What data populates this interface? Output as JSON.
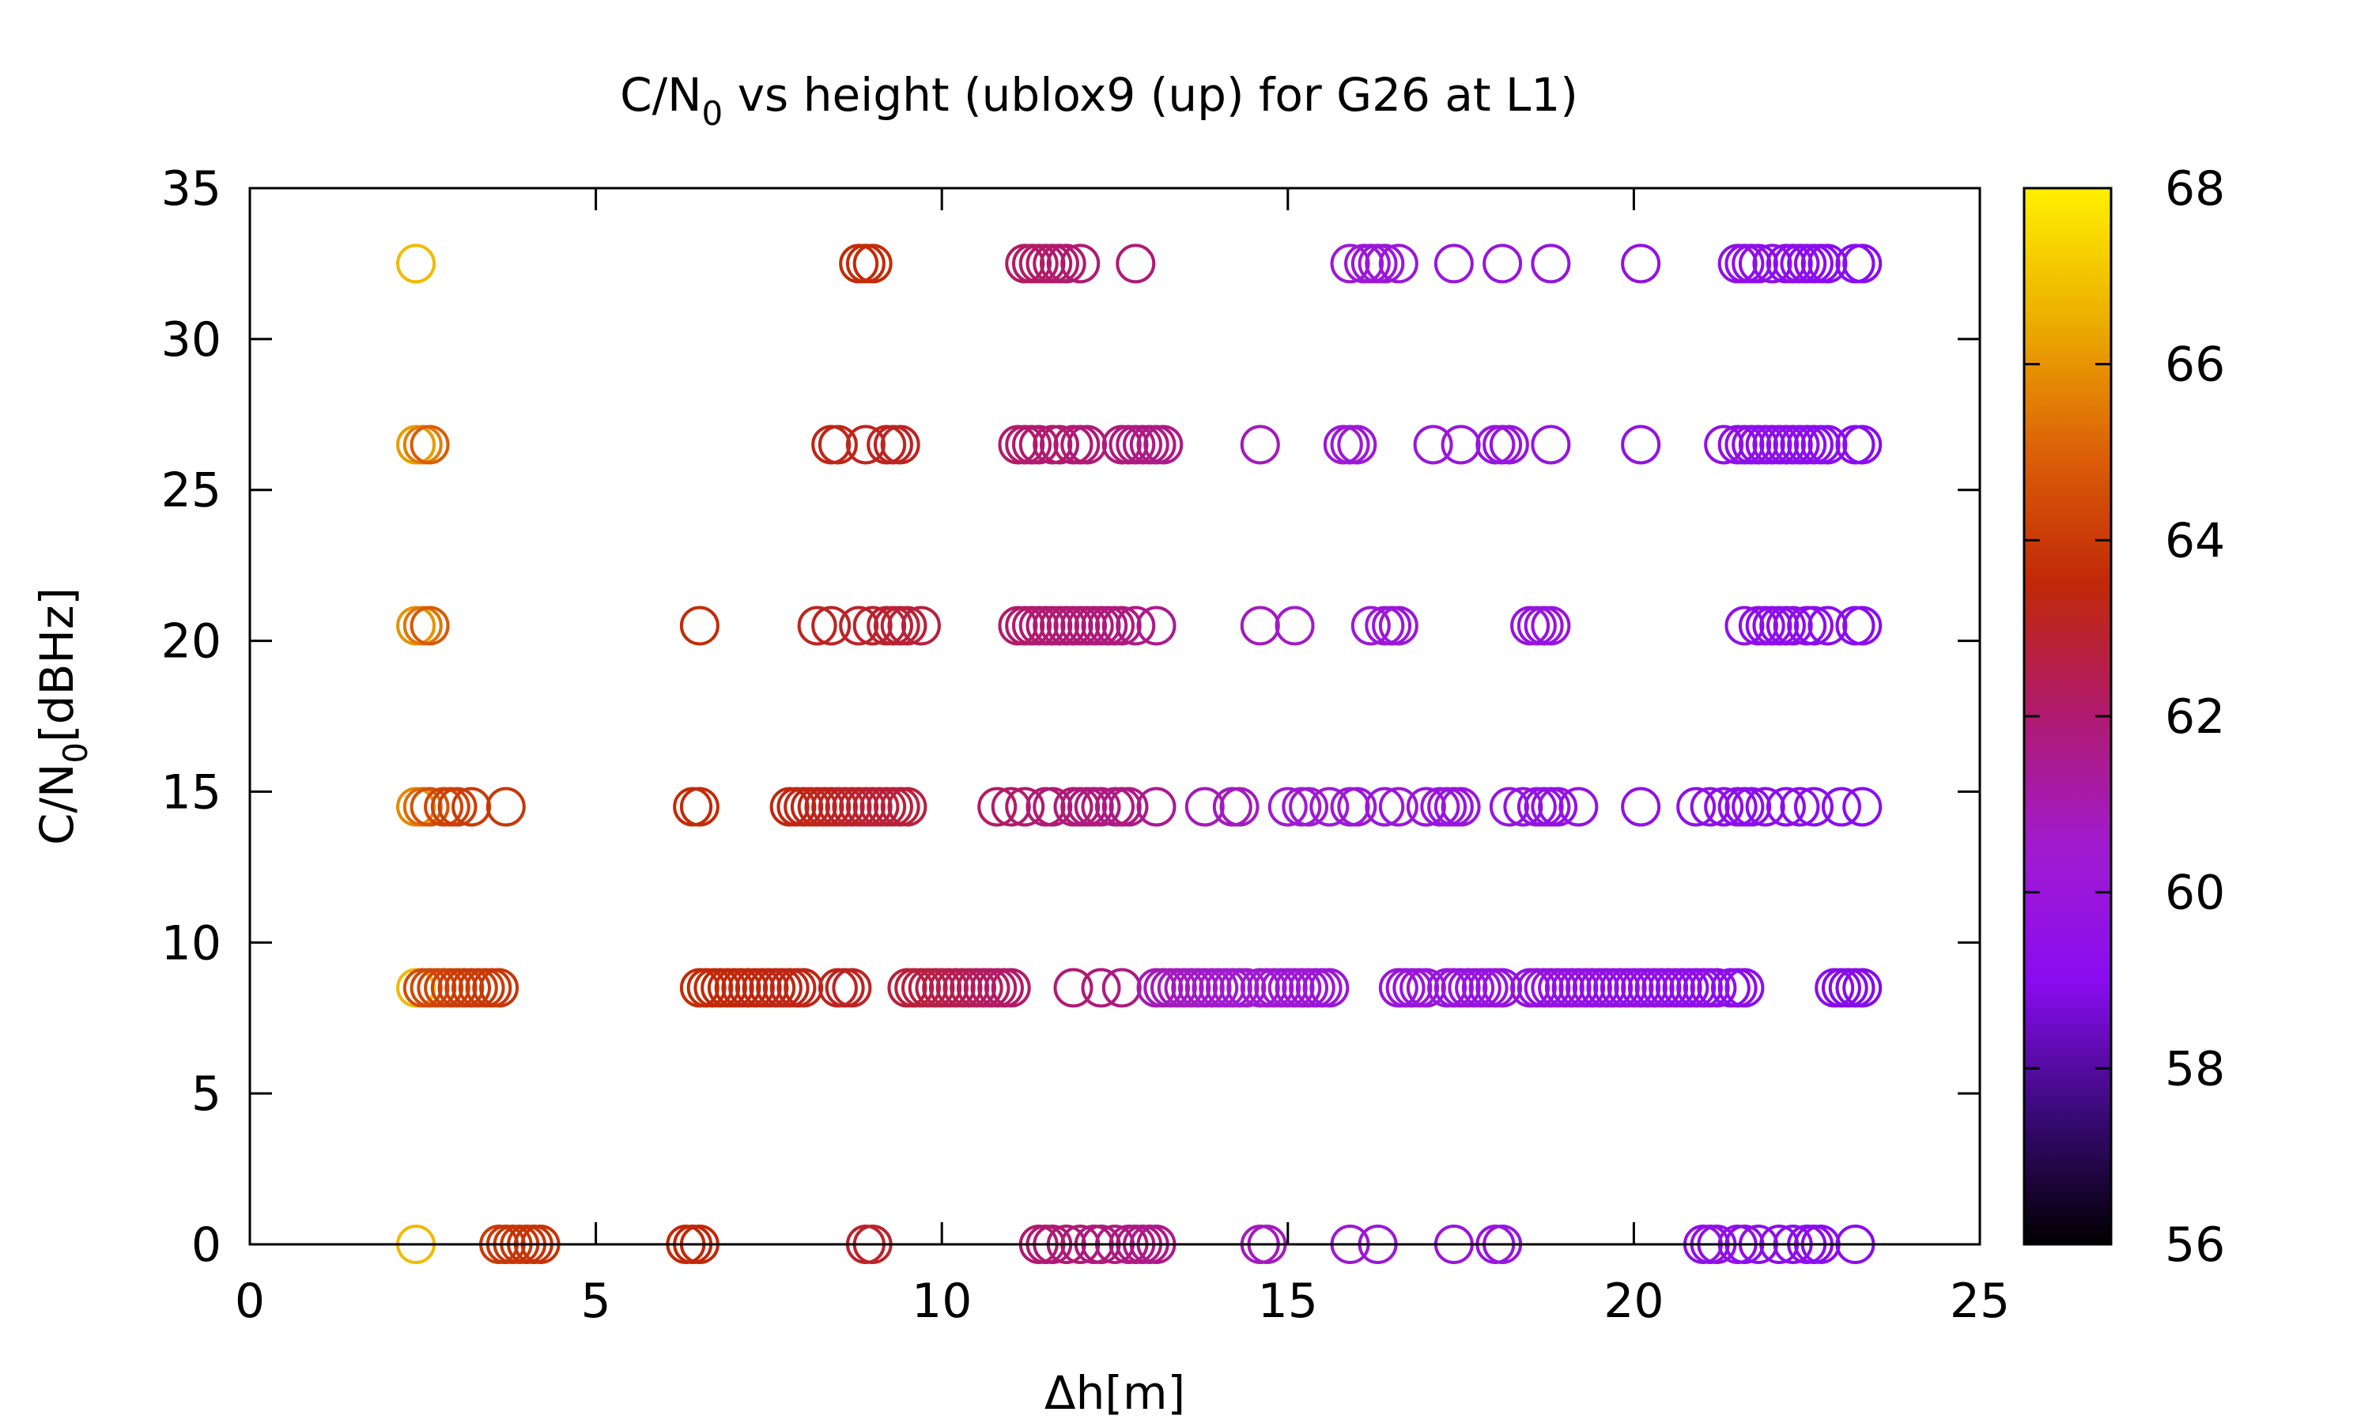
{
  "chart_data": {
    "type": "scatter",
    "title": "C/N0 vs height (ublox9 (up) for G26 at L1)",
    "title_parts": {
      "pre": "C/N",
      "sub": "0",
      "post": " vs height (ublox9 (up) for G26 at L1)"
    },
    "xlabel": "Δh[m]",
    "ylabel": "C/N0[dBHz]",
    "ylabel_parts": {
      "pre": "C/N",
      "sub": "0",
      "post": "[dBHz]"
    },
    "xlim": [
      0,
      25
    ],
    "ylim": [
      0,
      35
    ],
    "xticks": [
      "0",
      "5",
      "10",
      "15",
      "20",
      "25"
    ],
    "yticks": [
      "0",
      "5",
      "10",
      "15",
      "20",
      "25",
      "30",
      "35"
    ],
    "colorbar": {
      "range": [
        56,
        68
      ],
      "ticks": [
        "56",
        "58",
        "60",
        "62",
        "64",
        "66",
        "68"
      ],
      "palette": [
        "#000000",
        "#3a0a78",
        "#8a0cf0",
        "#a01bd0",
        "#b01a70",
        "#c02808",
        "#dc6008",
        "#ecae00",
        "#fff000"
      ]
    },
    "grid": false,
    "marker": "open-circle",
    "series": [
      {
        "y": 32.5,
        "x": [
          2.4,
          8.8,
          8.9,
          9.0,
          11.2,
          11.3,
          11.4,
          11.5,
          11.6,
          11.7,
          11.8,
          12.0,
          12.8,
          15.9,
          16.1,
          16.2,
          16.3,
          16.4,
          16.6,
          17.4,
          18.1,
          18.8,
          20.1,
          21.5,
          21.6,
          21.7,
          21.8,
          22.0,
          22.2,
          22.3,
          22.4,
          22.5,
          22.6,
          22.7,
          22.8,
          23.2,
          23.3
        ],
        "cn0": [
          66.8,
          63.6,
          63.6,
          63.6,
          62.2,
          62.2,
          62.2,
          62.1,
          62.1,
          62.1,
          62.0,
          62.0,
          61.9,
          60.3,
          60.2,
          60.2,
          60.2,
          60.1,
          60.1,
          60.0,
          59.9,
          59.8,
          59.6,
          59.4,
          59.4,
          59.4,
          59.3,
          59.3,
          59.2,
          59.2,
          59.2,
          59.2,
          59.1,
          59.1,
          59.1,
          59.0,
          59.0
        ]
      },
      {
        "y": 26.5,
        "x": [
          2.4,
          2.5,
          2.6,
          8.4,
          8.5,
          8.9,
          9.2,
          9.3,
          9.4,
          11.1,
          11.2,
          11.3,
          11.4,
          11.6,
          11.7,
          11.9,
          12.0,
          12.1,
          12.6,
          12.7,
          12.8,
          12.9,
          13.0,
          13.1,
          13.2,
          14.6,
          15.8,
          15.9,
          16.0,
          17.1,
          17.5,
          18.0,
          18.1,
          18.2,
          18.8,
          20.1,
          21.3,
          21.5,
          21.6,
          21.7,
          21.8,
          21.9,
          22.0,
          22.1,
          22.2,
          22.3,
          22.4,
          22.5,
          22.6,
          22.7,
          22.8,
          23.2,
          23.3
        ],
        "cn0": [
          66.2,
          65.6,
          64.9,
          63.3,
          63.3,
          63.2,
          63.2,
          63.1,
          63.1,
          62.1,
          62.1,
          62.1,
          62.0,
          62.0,
          62.0,
          62.0,
          61.9,
          61.9,
          61.8,
          61.8,
          61.8,
          61.7,
          61.7,
          61.7,
          61.6,
          60.8,
          60.3,
          60.3,
          60.2,
          60.1,
          60.0,
          59.9,
          59.9,
          59.9,
          59.8,
          59.6,
          59.4,
          59.4,
          59.4,
          59.3,
          59.3,
          59.3,
          59.3,
          59.2,
          59.2,
          59.2,
          59.2,
          59.2,
          59.1,
          59.1,
          59.1,
          59.0,
          59.0
        ]
      },
      {
        "y": 20.5,
        "x": [
          2.4,
          2.5,
          2.6,
          6.5,
          8.2,
          8.4,
          8.8,
          9.0,
          9.2,
          9.3,
          9.4,
          9.5,
          9.7,
          11.1,
          11.2,
          11.3,
          11.4,
          11.5,
          11.6,
          11.7,
          11.8,
          11.9,
          12.0,
          12.1,
          12.2,
          12.3,
          12.4,
          12.5,
          12.6,
          12.8,
          13.1,
          14.6,
          15.1,
          16.2,
          16.4,
          16.5,
          16.6,
          18.5,
          18.6,
          18.7,
          18.8,
          21.6,
          21.8,
          21.9,
          22.0,
          22.1,
          22.2,
          22.3,
          22.5,
          22.6,
          22.8,
          23.2,
          23.3
        ],
        "cn0": [
          66.0,
          65.4,
          64.8,
          63.6,
          63.2,
          63.1,
          63.0,
          63.0,
          62.9,
          62.9,
          62.9,
          62.8,
          62.7,
          62.1,
          62.1,
          62.1,
          62.0,
          62.0,
          62.0,
          62.0,
          62.0,
          61.9,
          61.9,
          61.9,
          61.9,
          61.9,
          61.8,
          61.8,
          61.8,
          61.7,
          61.5,
          60.8,
          60.6,
          60.2,
          60.2,
          60.1,
          60.1,
          59.8,
          59.8,
          59.8,
          59.8,
          59.4,
          59.3,
          59.3,
          59.3,
          59.2,
          59.2,
          59.2,
          59.2,
          59.1,
          59.1,
          59.0,
          59.0
        ]
      },
      {
        "y": 14.5,
        "x": [
          2.4,
          2.5,
          2.6,
          2.8,
          2.9,
          3.0,
          3.2,
          3.7,
          6.4,
          6.5,
          7.8,
          7.9,
          8.0,
          8.1,
          8.2,
          8.3,
          8.4,
          8.5,
          8.6,
          8.7,
          8.8,
          8.9,
          9.0,
          9.1,
          9.2,
          9.3,
          9.4,
          9.5,
          10.8,
          11.0,
          11.2,
          11.5,
          11.6,
          11.9,
          12.0,
          12.1,
          12.2,
          12.3,
          12.5,
          12.6,
          12.7,
          13.1,
          13.8,
          14.2,
          14.3,
          15.0,
          15.2,
          15.3,
          15.6,
          15.9,
          16.0,
          16.4,
          16.6,
          17.0,
          17.2,
          17.3,
          17.4,
          17.5,
          18.2,
          18.4,
          18.6,
          18.7,
          18.8,
          18.9,
          19.2,
          20.1,
          20.9,
          21.1,
          21.3,
          21.5,
          21.6,
          21.7,
          21.9,
          22.2,
          22.4,
          22.6,
          23.0,
          23.3
        ],
        "cn0": [
          65.8,
          65.2,
          64.6,
          64.3,
          64.2,
          64.1,
          64.0,
          63.9,
          63.6,
          63.6,
          63.4,
          63.4,
          63.3,
          63.3,
          63.3,
          63.2,
          63.2,
          63.1,
          63.1,
          63.0,
          63.0,
          62.9,
          62.9,
          62.8,
          62.8,
          62.8,
          62.7,
          62.7,
          62.2,
          62.1,
          62.0,
          61.9,
          61.9,
          61.9,
          61.9,
          61.8,
          61.8,
          61.8,
          61.7,
          61.7,
          61.7,
          61.5,
          60.9,
          60.8,
          60.8,
          60.5,
          60.4,
          60.4,
          60.3,
          60.2,
          60.2,
          60.1,
          60.1,
          60.0,
          60.0,
          60.0,
          59.9,
          59.9,
          59.8,
          59.8,
          59.7,
          59.7,
          59.7,
          59.6,
          59.6,
          59.5,
          59.4,
          59.4,
          59.3,
          59.3,
          59.3,
          59.2,
          59.2,
          59.2,
          59.1,
          59.1,
          59.0,
          59.0
        ]
      },
      {
        "y": 8.5,
        "x": [
          2.4,
          2.5,
          2.6,
          2.7,
          2.8,
          2.9,
          3.0,
          3.1,
          3.2,
          3.3,
          3.4,
          3.5,
          3.6,
          6.5,
          6.6,
          6.7,
          6.8,
          6.9,
          7.0,
          7.1,
          7.2,
          7.3,
          7.4,
          7.5,
          7.6,
          7.7,
          7.8,
          7.9,
          8.0,
          8.5,
          8.6,
          8.7,
          9.5,
          9.6,
          9.7,
          9.8,
          9.9,
          10.0,
          10.1,
          10.2,
          10.3,
          10.4,
          10.5,
          10.6,
          10.7,
          10.8,
          10.9,
          11.0,
          11.9,
          12.3,
          12.6,
          13.1,
          13.2,
          13.3,
          13.4,
          13.5,
          13.6,
          13.7,
          13.8,
          13.9,
          14.0,
          14.1,
          14.2,
          14.3,
          14.4,
          14.6,
          14.7,
          14.8,
          14.9,
          15.0,
          15.1,
          15.2,
          15.3,
          15.4,
          15.5,
          15.6,
          16.6,
          16.7,
          16.8,
          16.9,
          17.0,
          17.3,
          17.4,
          17.5,
          17.6,
          17.7,
          17.8,
          17.9,
          18.0,
          18.1,
          18.5,
          18.6,
          18.7,
          18.8,
          18.9,
          19.0,
          19.1,
          19.2,
          19.3,
          19.4,
          19.5,
          19.6,
          19.7,
          19.8,
          19.9,
          20.0,
          20.1,
          20.2,
          20.3,
          20.4,
          20.5,
          20.6,
          20.7,
          20.8,
          20.9,
          21.0,
          21.1,
          21.2,
          21.4,
          21.5,
          21.6,
          22.9,
          23.0,
          23.1,
          23.2,
          23.3
        ],
        "cn0": [
          66.8,
          64.5,
          64.4,
          64.3,
          64.3,
          64.2,
          64.1,
          64.1,
          64.0,
          64.0,
          64.0,
          63.9,
          63.9,
          63.6,
          63.6,
          63.6,
          63.5,
          63.5,
          63.5,
          63.5,
          63.4,
          63.4,
          63.4,
          63.4,
          63.4,
          63.3,
          63.3,
          63.3,
          63.3,
          63.2,
          63.1,
          63.1,
          62.8,
          62.8,
          62.7,
          62.7,
          62.6,
          62.6,
          62.5,
          62.5,
          62.4,
          62.4,
          62.3,
          62.3,
          62.2,
          62.2,
          62.1,
          62.1,
          61.9,
          61.8,
          61.7,
          60.9,
          60.9,
          60.8,
          60.8,
          60.8,
          60.7,
          60.7,
          60.7,
          60.6,
          60.6,
          60.6,
          60.5,
          60.5,
          60.5,
          60.4,
          60.4,
          60.4,
          60.3,
          60.3,
          60.3,
          60.2,
          60.2,
          60.2,
          60.1,
          60.1,
          60.0,
          60.0,
          60.0,
          60.0,
          60.0,
          59.9,
          59.9,
          59.9,
          59.9,
          59.9,
          59.8,
          59.8,
          59.8,
          59.8,
          59.7,
          59.7,
          59.7,
          59.7,
          59.7,
          59.6,
          59.6,
          59.6,
          59.6,
          59.6,
          59.5,
          59.5,
          59.5,
          59.5,
          59.5,
          59.5,
          59.4,
          59.4,
          59.4,
          59.4,
          59.4,
          59.4,
          59.3,
          59.3,
          59.3,
          59.3,
          59.3,
          59.3,
          59.2,
          59.2,
          59.2,
          59.2,
          58.9,
          58.9,
          58.9,
          58.9,
          58.9
        ]
      },
      {
        "y": 0,
        "x": [
          2.4,
          3.6,
          3.7,
          3.8,
          3.9,
          4.0,
          4.1,
          4.2,
          6.3,
          6.4,
          6.5,
          8.9,
          9.0,
          11.4,
          11.5,
          11.6,
          11.8,
          12.0,
          12.2,
          12.3,
          12.5,
          12.7,
          12.8,
          12.9,
          13.0,
          13.1,
          14.6,
          14.7,
          15.9,
          16.3,
          17.4,
          18.0,
          18.1,
          21.0,
          21.1,
          21.2,
          21.5,
          21.6,
          21.8,
          22.1,
          22.3,
          22.5,
          22.6,
          22.7,
          23.2
        ],
        "cn0": [
          66.8,
          64.0,
          63.9,
          63.9,
          63.9,
          63.8,
          63.8,
          63.8,
          63.5,
          63.5,
          63.5,
          63.0,
          63.0,
          62.0,
          62.0,
          61.9,
          61.9,
          61.9,
          61.8,
          61.8,
          61.8,
          61.7,
          61.7,
          61.7,
          61.6,
          61.6,
          60.8,
          60.8,
          60.3,
          60.1,
          60.0,
          59.9,
          59.9,
          59.5,
          59.5,
          59.4,
          59.4,
          59.3,
          59.3,
          59.2,
          59.2,
          59.2,
          59.1,
          59.1,
          59.0
        ]
      }
    ]
  }
}
